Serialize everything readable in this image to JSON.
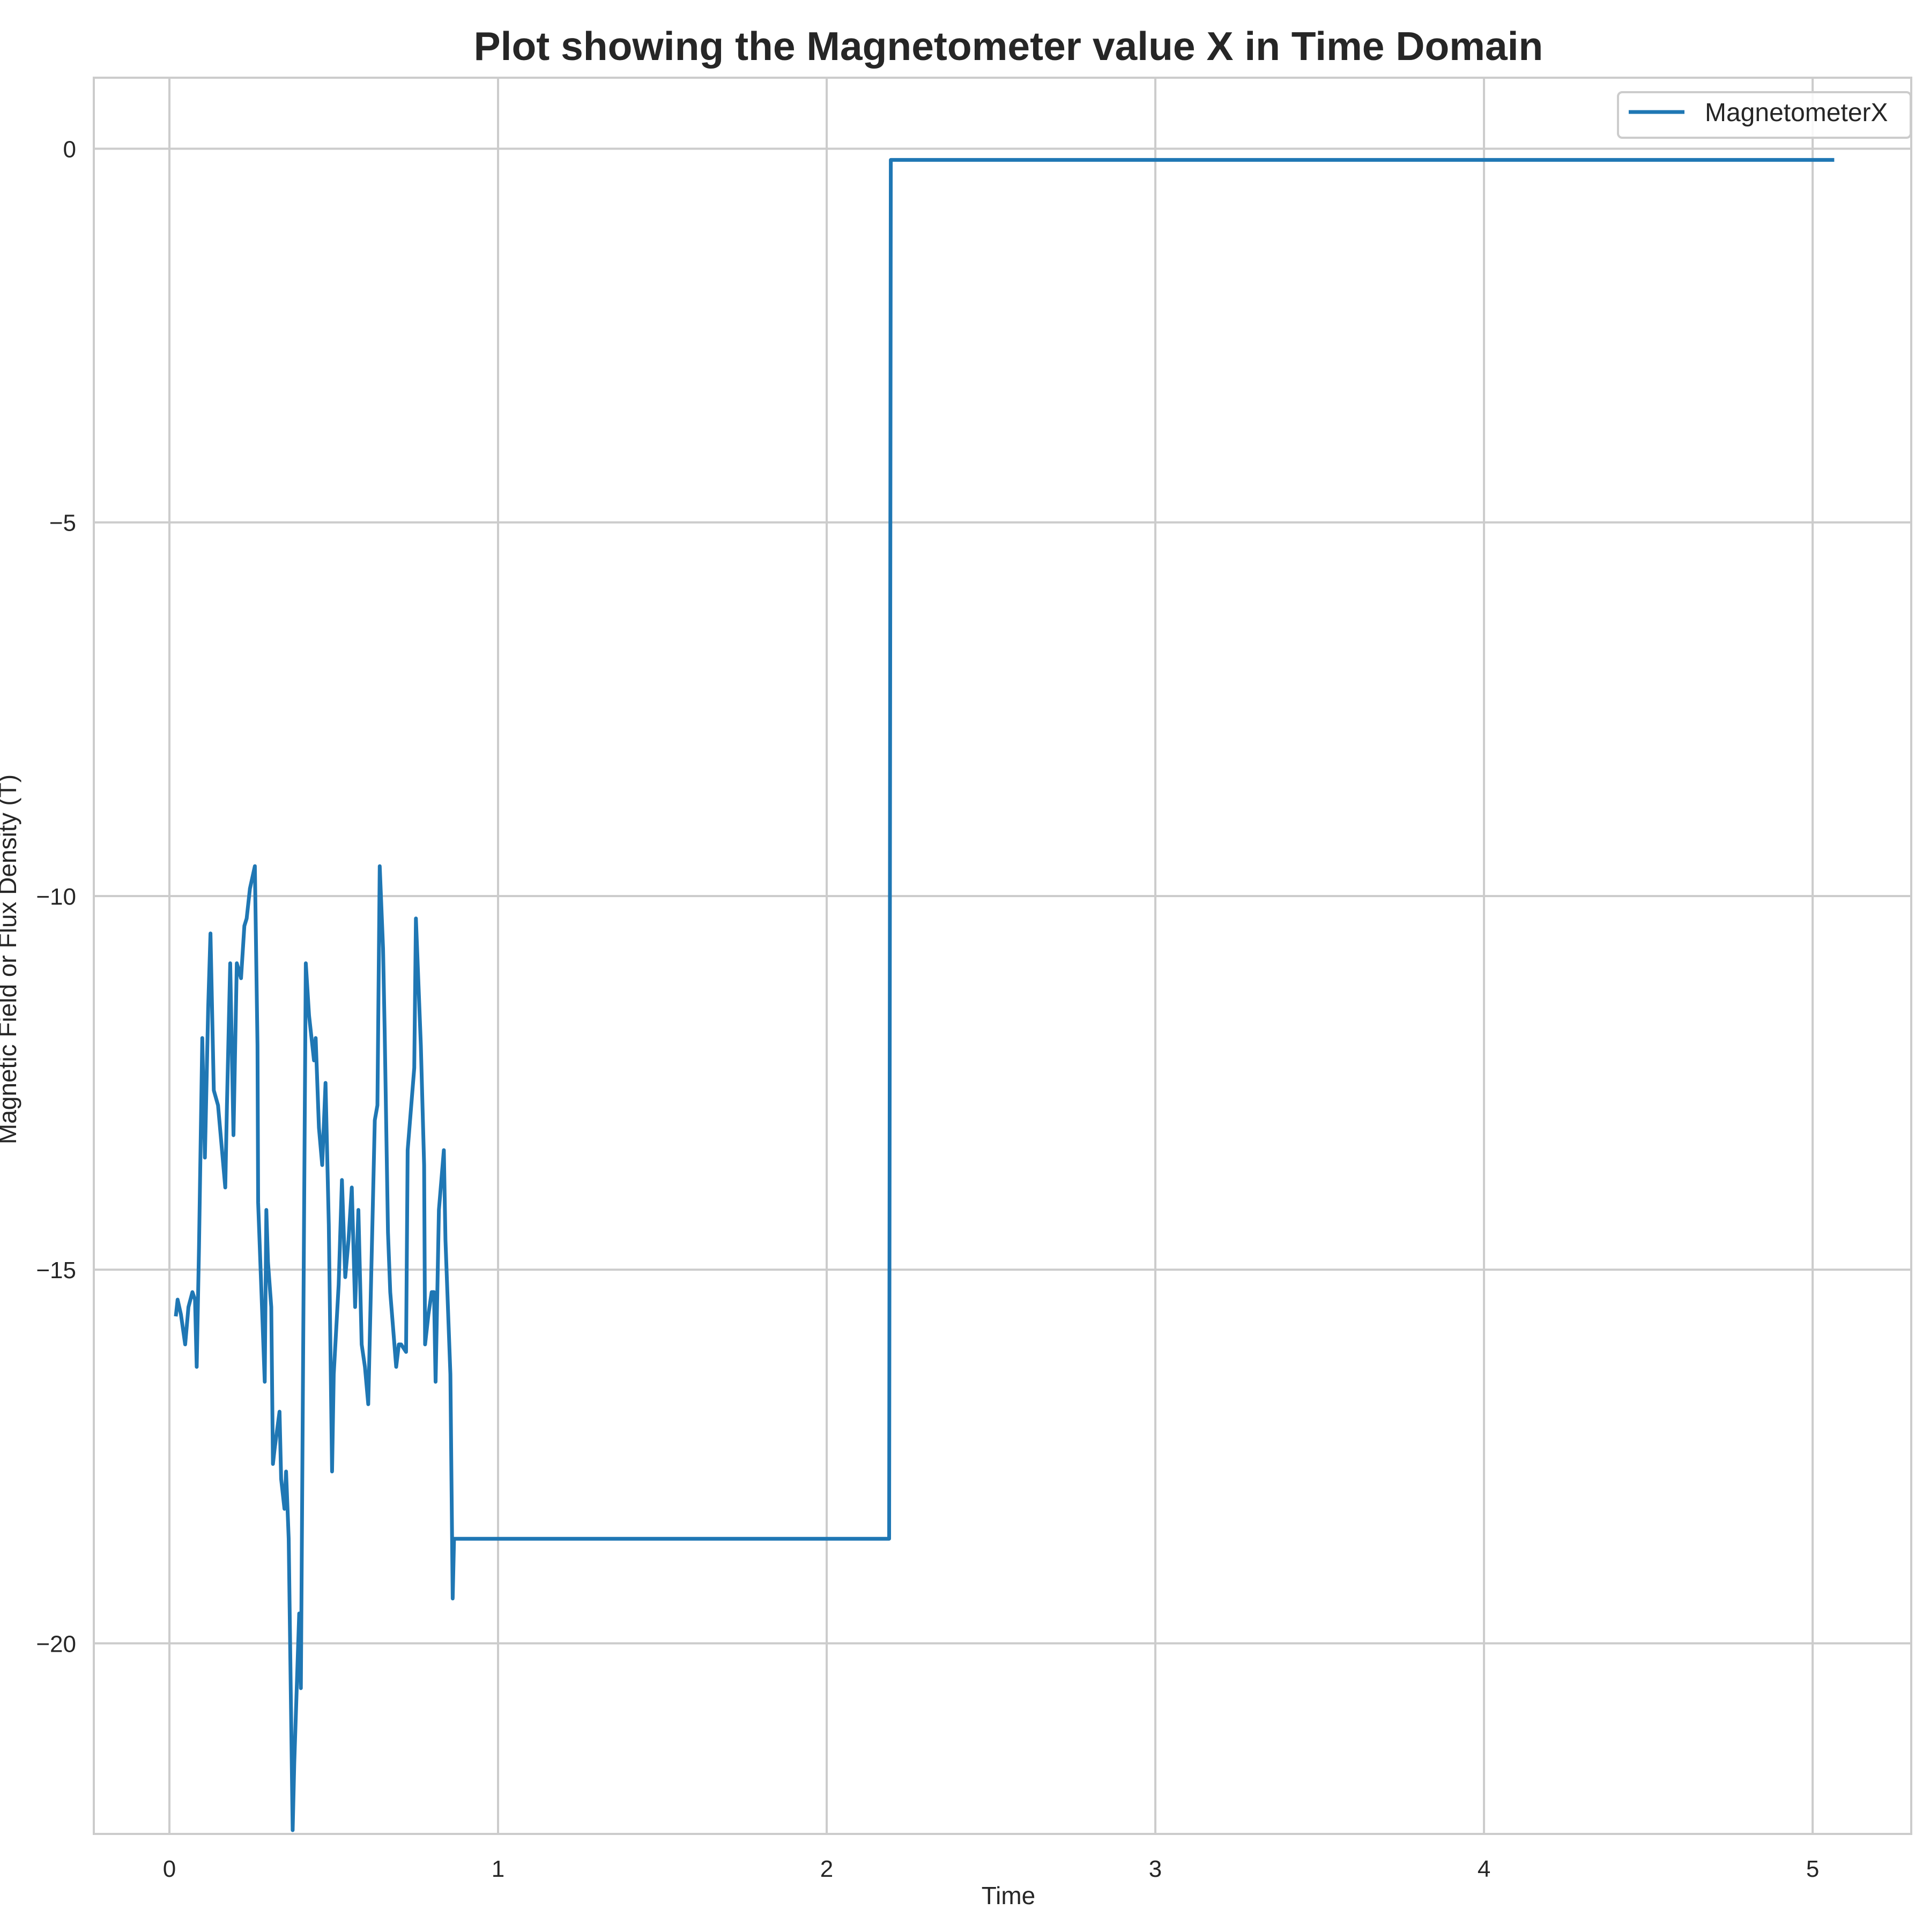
{
  "chart_data": {
    "type": "line",
    "title": "Plot showing the Magnetometer value X in Time Domain",
    "xlabel": "Time",
    "ylabel": "Magnetic Field or Flux Density (T)",
    "xlim": [
      -0.23,
      5.3
    ],
    "ylim": [
      -22.55,
      0.95
    ],
    "xticks": [
      0,
      1,
      2,
      3,
      4,
      5
    ],
    "yticks": [
      0,
      -5,
      -10,
      -15,
      -20
    ],
    "xtick_labels": [
      "0",
      "1",
      "2",
      "3",
      "4",
      "5"
    ],
    "ytick_labels": [
      "0",
      "−5",
      "−10",
      "−15",
      "−20"
    ],
    "grid": true,
    "legend": {
      "position": "top-right",
      "entries": [
        "MagnetometerX"
      ]
    },
    "series": [
      {
        "name": "MagnetometerX",
        "color": "#1f77b4",
        "x": [
          0.02,
          0.025,
          0.035,
          0.048,
          0.058,
          0.07,
          0.078,
          0.083,
          0.09,
          0.1,
          0.108,
          0.118,
          0.125,
          0.135,
          0.148,
          0.17,
          0.175,
          0.185,
          0.195,
          0.205,
          0.218,
          0.228,
          0.235,
          0.245,
          0.26,
          0.268,
          0.27,
          0.29,
          0.295,
          0.3,
          0.31,
          0.315,
          0.32,
          0.335,
          0.34,
          0.35,
          0.355,
          0.363,
          0.375,
          0.38,
          0.395,
          0.4,
          0.415,
          0.425,
          0.44,
          0.445,
          0.455,
          0.465,
          0.475,
          0.485,
          0.495,
          0.5,
          0.515,
          0.525,
          0.535,
          0.545,
          0.555,
          0.565,
          0.575,
          0.585,
          0.595,
          0.605,
          0.625,
          0.633,
          0.64,
          0.65,
          0.655,
          0.665,
          0.672,
          0.69,
          0.698,
          0.705,
          0.72,
          0.725,
          0.745,
          0.75,
          0.765,
          0.775,
          0.778,
          0.788,
          0.798,
          0.805,
          0.81,
          0.82,
          0.835,
          0.84,
          0.855,
          0.862,
          0.866,
          0.87,
          2.19,
          2.195,
          5.06
        ],
        "y": [
          -15.6,
          -15.4,
          -15.6,
          -16.0,
          -15.5,
          -15.3,
          -15.4,
          -16.3,
          -14.7,
          -11.9,
          -13.5,
          -11.5,
          -10.5,
          -12.6,
          -12.8,
          -13.9,
          -12.8,
          -10.9,
          -13.2,
          -10.9,
          -11.1,
          -10.4,
          -10.3,
          -9.9,
          -9.6,
          -12.0,
          -14.1,
          -16.5,
          -14.2,
          -14.9,
          -15.5,
          -17.6,
          -17.4,
          -16.9,
          -17.8,
          -18.2,
          -17.7,
          -18.6,
          -22.5,
          -21.6,
          -19.6,
          -20.6,
          -10.9,
          -11.6,
          -12.2,
          -11.9,
          -13.1,
          -13.6,
          -12.5,
          -14.4,
          -17.7,
          -16.4,
          -15.2,
          -13.8,
          -15.1,
          -14.6,
          -13.9,
          -15.5,
          -14.2,
          -16.0,
          -16.3,
          -16.8,
          -13.0,
          -12.8,
          -9.6,
          -10.7,
          -11.8,
          -14.5,
          -15.3,
          -16.3,
          -16.0,
          -16.0,
          -16.1,
          -13.4,
          -12.3,
          -10.3,
          -12.0,
          -13.6,
          -16.0,
          -15.6,
          -15.3,
          -15.3,
          -16.5,
          -14.2,
          -13.4,
          -14.6,
          -16.4,
          -19.4,
          -18.6,
          -18.6,
          -18.6,
          -0.15,
          -0.15
        ]
      }
    ]
  }
}
